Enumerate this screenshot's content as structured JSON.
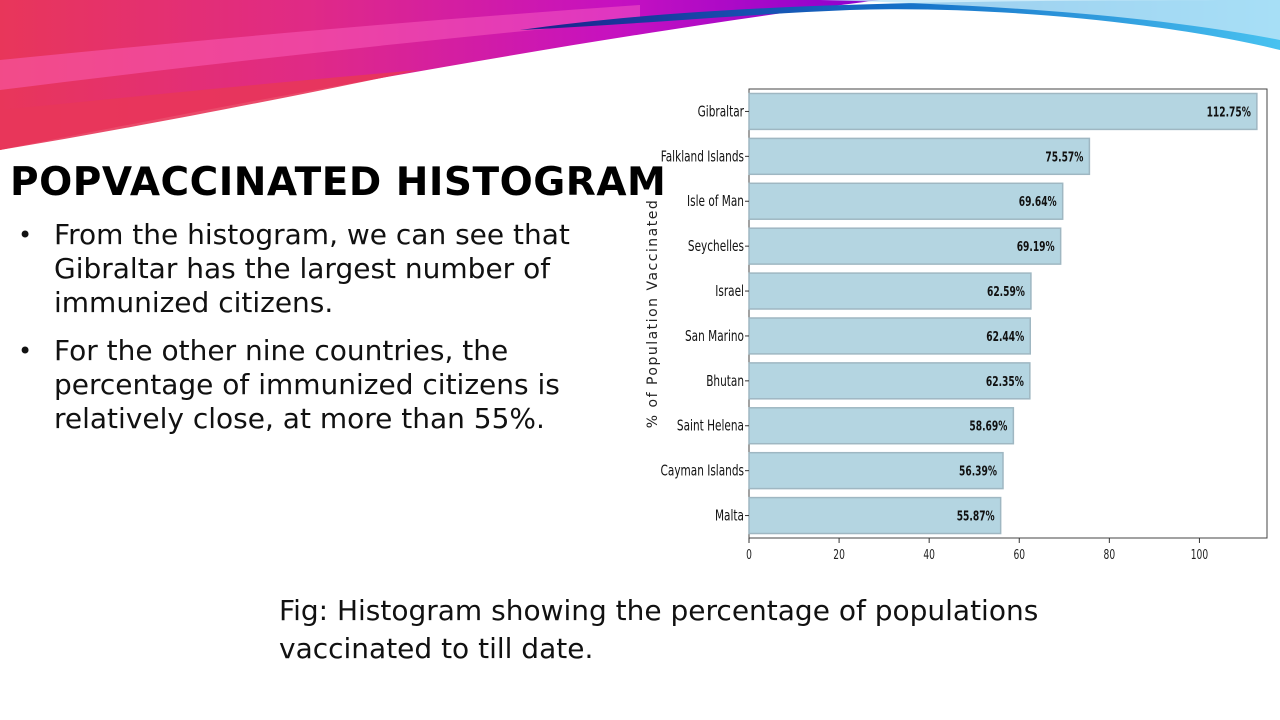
{
  "slide": {
    "title": "POPVACCINATED HISTOGRAM",
    "bullets": [
      "From the histogram, we can see that Gibraltar has the largest number of immunized citizens.",
      "For the other nine countries, the percentage of immunized citizens is relatively close, at more than 55%."
    ],
    "caption": "Fig: Histogram showing the percentage of populations vaccinated to till date."
  },
  "theme": {
    "bar_fill": "#b4d5e1",
    "bar_stroke": "#9fb7c2",
    "banner_colors": [
      "#e8365a",
      "#d81f8f",
      "#a600c8",
      "#1e3a9a",
      "#0b9ad6",
      "#48c2f0"
    ]
  },
  "chart_data": {
    "type": "bar",
    "orientation": "horizontal",
    "ylabel": "% of Population Vaccinated",
    "categories": [
      "Gibraltar",
      "Falkland Islands",
      "Isle of Man",
      "Seychelles",
      "Israel",
      "San Marino",
      "Bhutan",
      "Saint Helena",
      "Cayman Islands",
      "Malta"
    ],
    "values": [
      112.75,
      75.57,
      69.64,
      69.19,
      62.59,
      62.44,
      62.35,
      58.69,
      56.39,
      55.87
    ],
    "value_labels": [
      "112.75%",
      "75.57%",
      "69.64%",
      "69.19%",
      "62.59%",
      "62.44%",
      "62.35%",
      "58.69%",
      "56.39%",
      "55.87%"
    ],
    "xlim": [
      0,
      115
    ],
    "xticks": [
      0,
      20,
      40,
      60,
      80,
      100
    ],
    "grid": false
  }
}
